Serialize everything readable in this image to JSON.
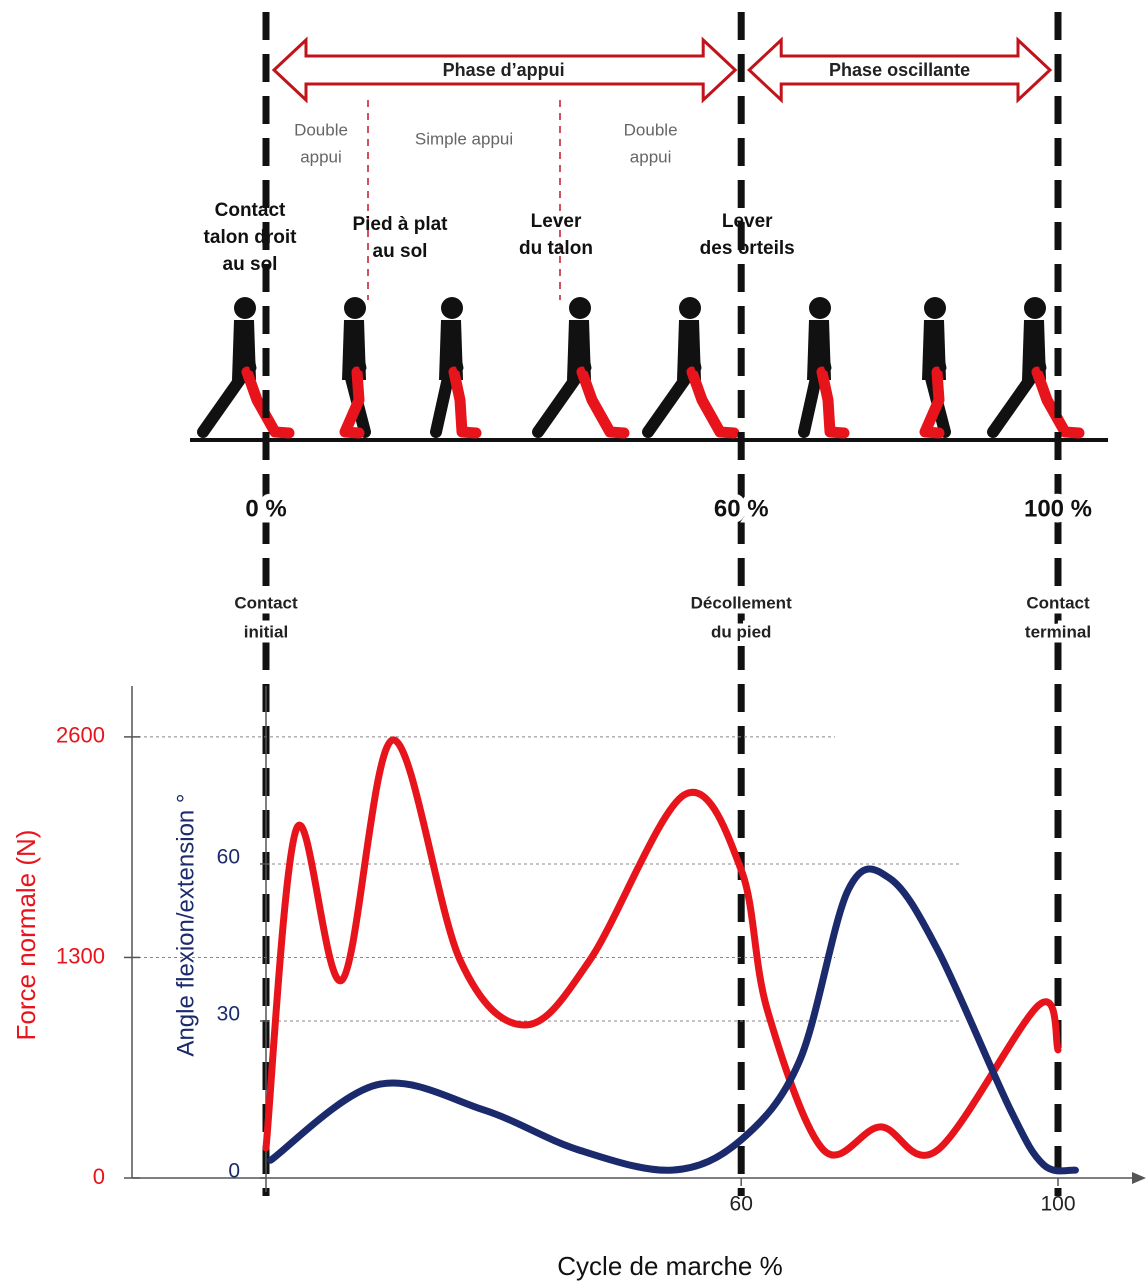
{
  "diagram": {
    "phases": [
      "Phase d’appui",
      "Phase oscillante"
    ],
    "sub_phases": [
      [
        "Double",
        "appui"
      ],
      [
        "Simple appui"
      ],
      [
        "Double",
        "appui"
      ]
    ],
    "events": [
      [
        "Contact",
        "talon droit",
        "au sol"
      ],
      [
        "Pied à plat",
        "au sol"
      ],
      [
        "Lever",
        "du talon"
      ],
      [
        "Lever",
        "des orteils"
      ]
    ],
    "percents": [
      "0 %",
      "60 %",
      "100 %"
    ],
    "milestones": [
      [
        "Contact",
        "initial"
      ],
      [
        "Décollement",
        "du pied"
      ],
      [
        "Contact",
        "terminal"
      ]
    ]
  },
  "chart_data": {
    "type": "line",
    "x_label": "Cycle de marche %",
    "y_label": "Force normale (N)",
    "y2_label": "Angle flexion/extension °",
    "xlim": [
      0,
      110
    ],
    "xticks": [
      60,
      100
    ],
    "ylim": [
      0,
      2900
    ],
    "yticks": [
      0,
      1300,
      2600
    ],
    "y2lim": [
      0,
      94
    ],
    "y2ticks": [
      0,
      30,
      60
    ],
    "grid": true,
    "series": [
      {
        "color": "#e8141b",
        "axis": "y",
        "x": [
          0,
          3.9,
          9.6,
          16,
          24.5,
          32.7,
          40.9,
          52.8,
          60,
          63.3,
          70.4,
          77.6,
          84.8,
          97.6,
          100
        ],
        "values": [
          177,
          2064,
          1167,
          2582,
          1285,
          902,
          1285,
          2258,
          1816,
          990,
          165,
          301,
          165,
          1020,
          755
        ]
      },
      {
        "color": "#1a2a6c",
        "axis": "y2",
        "x": [
          0.6,
          14,
          27.5,
          39.4,
          51.3,
          60,
          67.4,
          73.5,
          78.7,
          84.8,
          94,
          98.2,
          102.2
        ],
        "values": [
          3.4,
          17.8,
          13,
          5.4,
          1.5,
          7.3,
          22.5,
          55,
          57.3,
          43.6,
          13,
          2.5,
          1.5
        ]
      }
    ]
  }
}
